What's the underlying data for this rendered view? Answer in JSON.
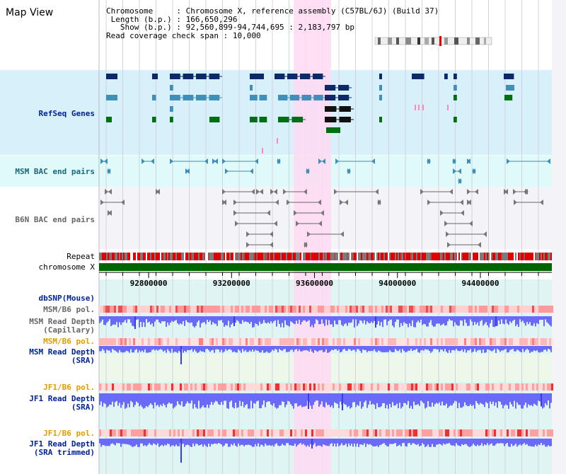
{
  "view_title": "Map View",
  "info": {
    "chromosome_key": "Chromosome",
    "chromosome_val": "Chromosome X, reference assembly (C57BL/6J) (Build 37)",
    "length_key": "Length (b.p.)",
    "length_val": "166,650,296",
    "show_key": "Show (b.p.)",
    "show_val": "92,560,899-94,744,695 : 2,183,797 bp",
    "coverage_key": "Read coverage check span",
    "coverage_val": "10,000"
  },
  "tracks": {
    "refseq": "RefSeq Genes",
    "msm_bac": "MSM BAC end pairs",
    "b6n_bac": "B6N BAC end pairs",
    "repeat": "Repeat",
    "chromosome": "chromosome X",
    "dbsnp": "dbSNP(Mouse)",
    "msm_pol_1": "MSM/B6 pol.",
    "msm_depth_cap_1": "MSM Read Depth",
    "msm_depth_cap_2": "(Capillary)",
    "msm_pol_2": "MSM/B6 pol.",
    "msm_depth_sra_1": "MSM Read Depth",
    "msm_depth_sra_2": "(SRA)",
    "jf1_pol_1": "JF1/B6 pol.",
    "jf1_depth_sra_1": "JF1 Read Depth",
    "jf1_depth_sra_2": "(SRA)",
    "jf1_pol_2": "JF1/B6 pol.",
    "jf1_depth_trim_1": "JF1 Read Depth",
    "jf1_depth_trim_2": "(SRA trimmed)"
  },
  "axis": {
    "ticks": [
      "92800000",
      "93200000",
      "93600000",
      "94000000",
      "94400000"
    ],
    "tick_values": [
      92800000,
      93200000,
      93600000,
      94000000,
      94400000
    ],
    "range": [
      92560899,
      94744695
    ]
  },
  "highlight_range": [
    93500000,
    93680000
  ],
  "colors": {
    "refseq_bg": "#d8f0fa",
    "msm_bac_bg": "#dffaf8",
    "b6n_bac_bg": "#f4f4f8",
    "lower_bg": "#dff5f3",
    "sra_bg": "#eef8ea",
    "highlight": "#ffd9f2",
    "chromosome_bar": "#006400",
    "navy": "#0d2a66",
    "steel": "#3f8fb8",
    "green": "#006e12",
    "depth": "#6a6af8",
    "label_blue": "#00229b",
    "label_teal": "#1a6680",
    "label_gray": "#666666",
    "label_orange": "#e49a00"
  }
}
